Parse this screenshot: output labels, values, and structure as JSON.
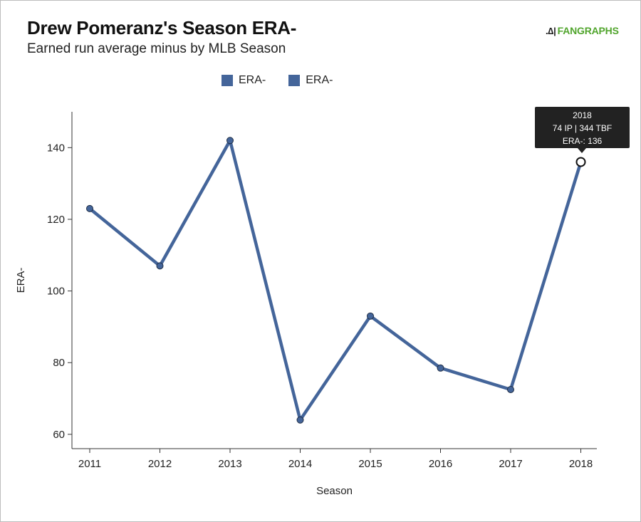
{
  "header": {
    "title": "Drew Pomeranz's Season ERA-",
    "subtitle": "Earned run average minus by MLB Season",
    "logo_mark": ".∆|",
    "logo_text": "FANGRAPHS"
  },
  "legend": [
    {
      "label": "ERA-"
    },
    {
      "label": "ERA-"
    }
  ],
  "tooltip": {
    "season": "2018",
    "line2": "74 IP | 344 TBF",
    "line3": "ERA-: 136"
  },
  "colors": {
    "series": "#44659a",
    "accent": "#51a52d"
  },
  "chart_data": {
    "type": "line",
    "title": "Drew Pomeranz's Season ERA-",
    "subtitle": "Earned run average minus by MLB Season",
    "xlabel": "Season",
    "ylabel": "ERA-",
    "x": [
      "2011",
      "2012",
      "2013",
      "2014",
      "2015",
      "2016",
      "2017",
      "2018"
    ],
    "series": [
      {
        "name": "ERA-",
        "values": [
          123,
          107,
          142,
          64,
          93,
          78.5,
          72.5,
          136
        ]
      }
    ],
    "ylim": [
      56,
      150
    ],
    "yticks": [
      60,
      80,
      100,
      120,
      140
    ],
    "highlight_index": 7,
    "legend_position": "top-center",
    "grid": false
  }
}
